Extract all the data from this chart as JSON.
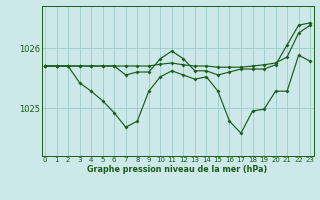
{
  "title": "Graphe pression niveau de la mer (hPa)",
  "background_color": "#cce8e8",
  "grid_color": "#99cccc",
  "line_color": "#1a5c1a",
  "x_ticks": [
    0,
    1,
    2,
    3,
    4,
    5,
    6,
    7,
    8,
    9,
    10,
    11,
    12,
    13,
    14,
    15,
    16,
    17,
    18,
    19,
    20,
    21,
    22,
    23
  ],
  "y_ticks": [
    1025,
    1026
  ],
  "ylim": [
    1024.2,
    1026.7
  ],
  "xlim": [
    -0.3,
    23.3
  ],
  "series1": [
    1025.7,
    1025.7,
    1025.7,
    1025.7,
    1025.7,
    1025.7,
    1025.7,
    1025.7,
    1025.7,
    1025.7,
    1025.73,
    1025.75,
    1025.72,
    1025.7,
    1025.7,
    1025.68,
    1025.68,
    1025.68,
    1025.7,
    1025.72,
    1025.75,
    1025.85,
    1026.25,
    1026.38
  ],
  "series2": [
    1025.7,
    1025.7,
    1025.7,
    1025.42,
    1025.28,
    1025.12,
    1024.92,
    1024.68,
    1024.78,
    1025.28,
    1025.52,
    1025.62,
    1025.55,
    1025.48,
    1025.52,
    1025.28,
    1024.78,
    1024.58,
    1024.95,
    1024.98,
    1025.28,
    1025.28,
    1025.88,
    1025.78
  ],
  "series3": [
    1025.7,
    1025.7,
    1025.7,
    1025.7,
    1025.7,
    1025.7,
    1025.7,
    1025.55,
    1025.6,
    1025.6,
    1025.82,
    1025.95,
    1025.82,
    1025.62,
    1025.62,
    1025.55,
    1025.6,
    1025.65,
    1025.65,
    1025.65,
    1025.72,
    1026.05,
    1026.38,
    1026.42
  ]
}
